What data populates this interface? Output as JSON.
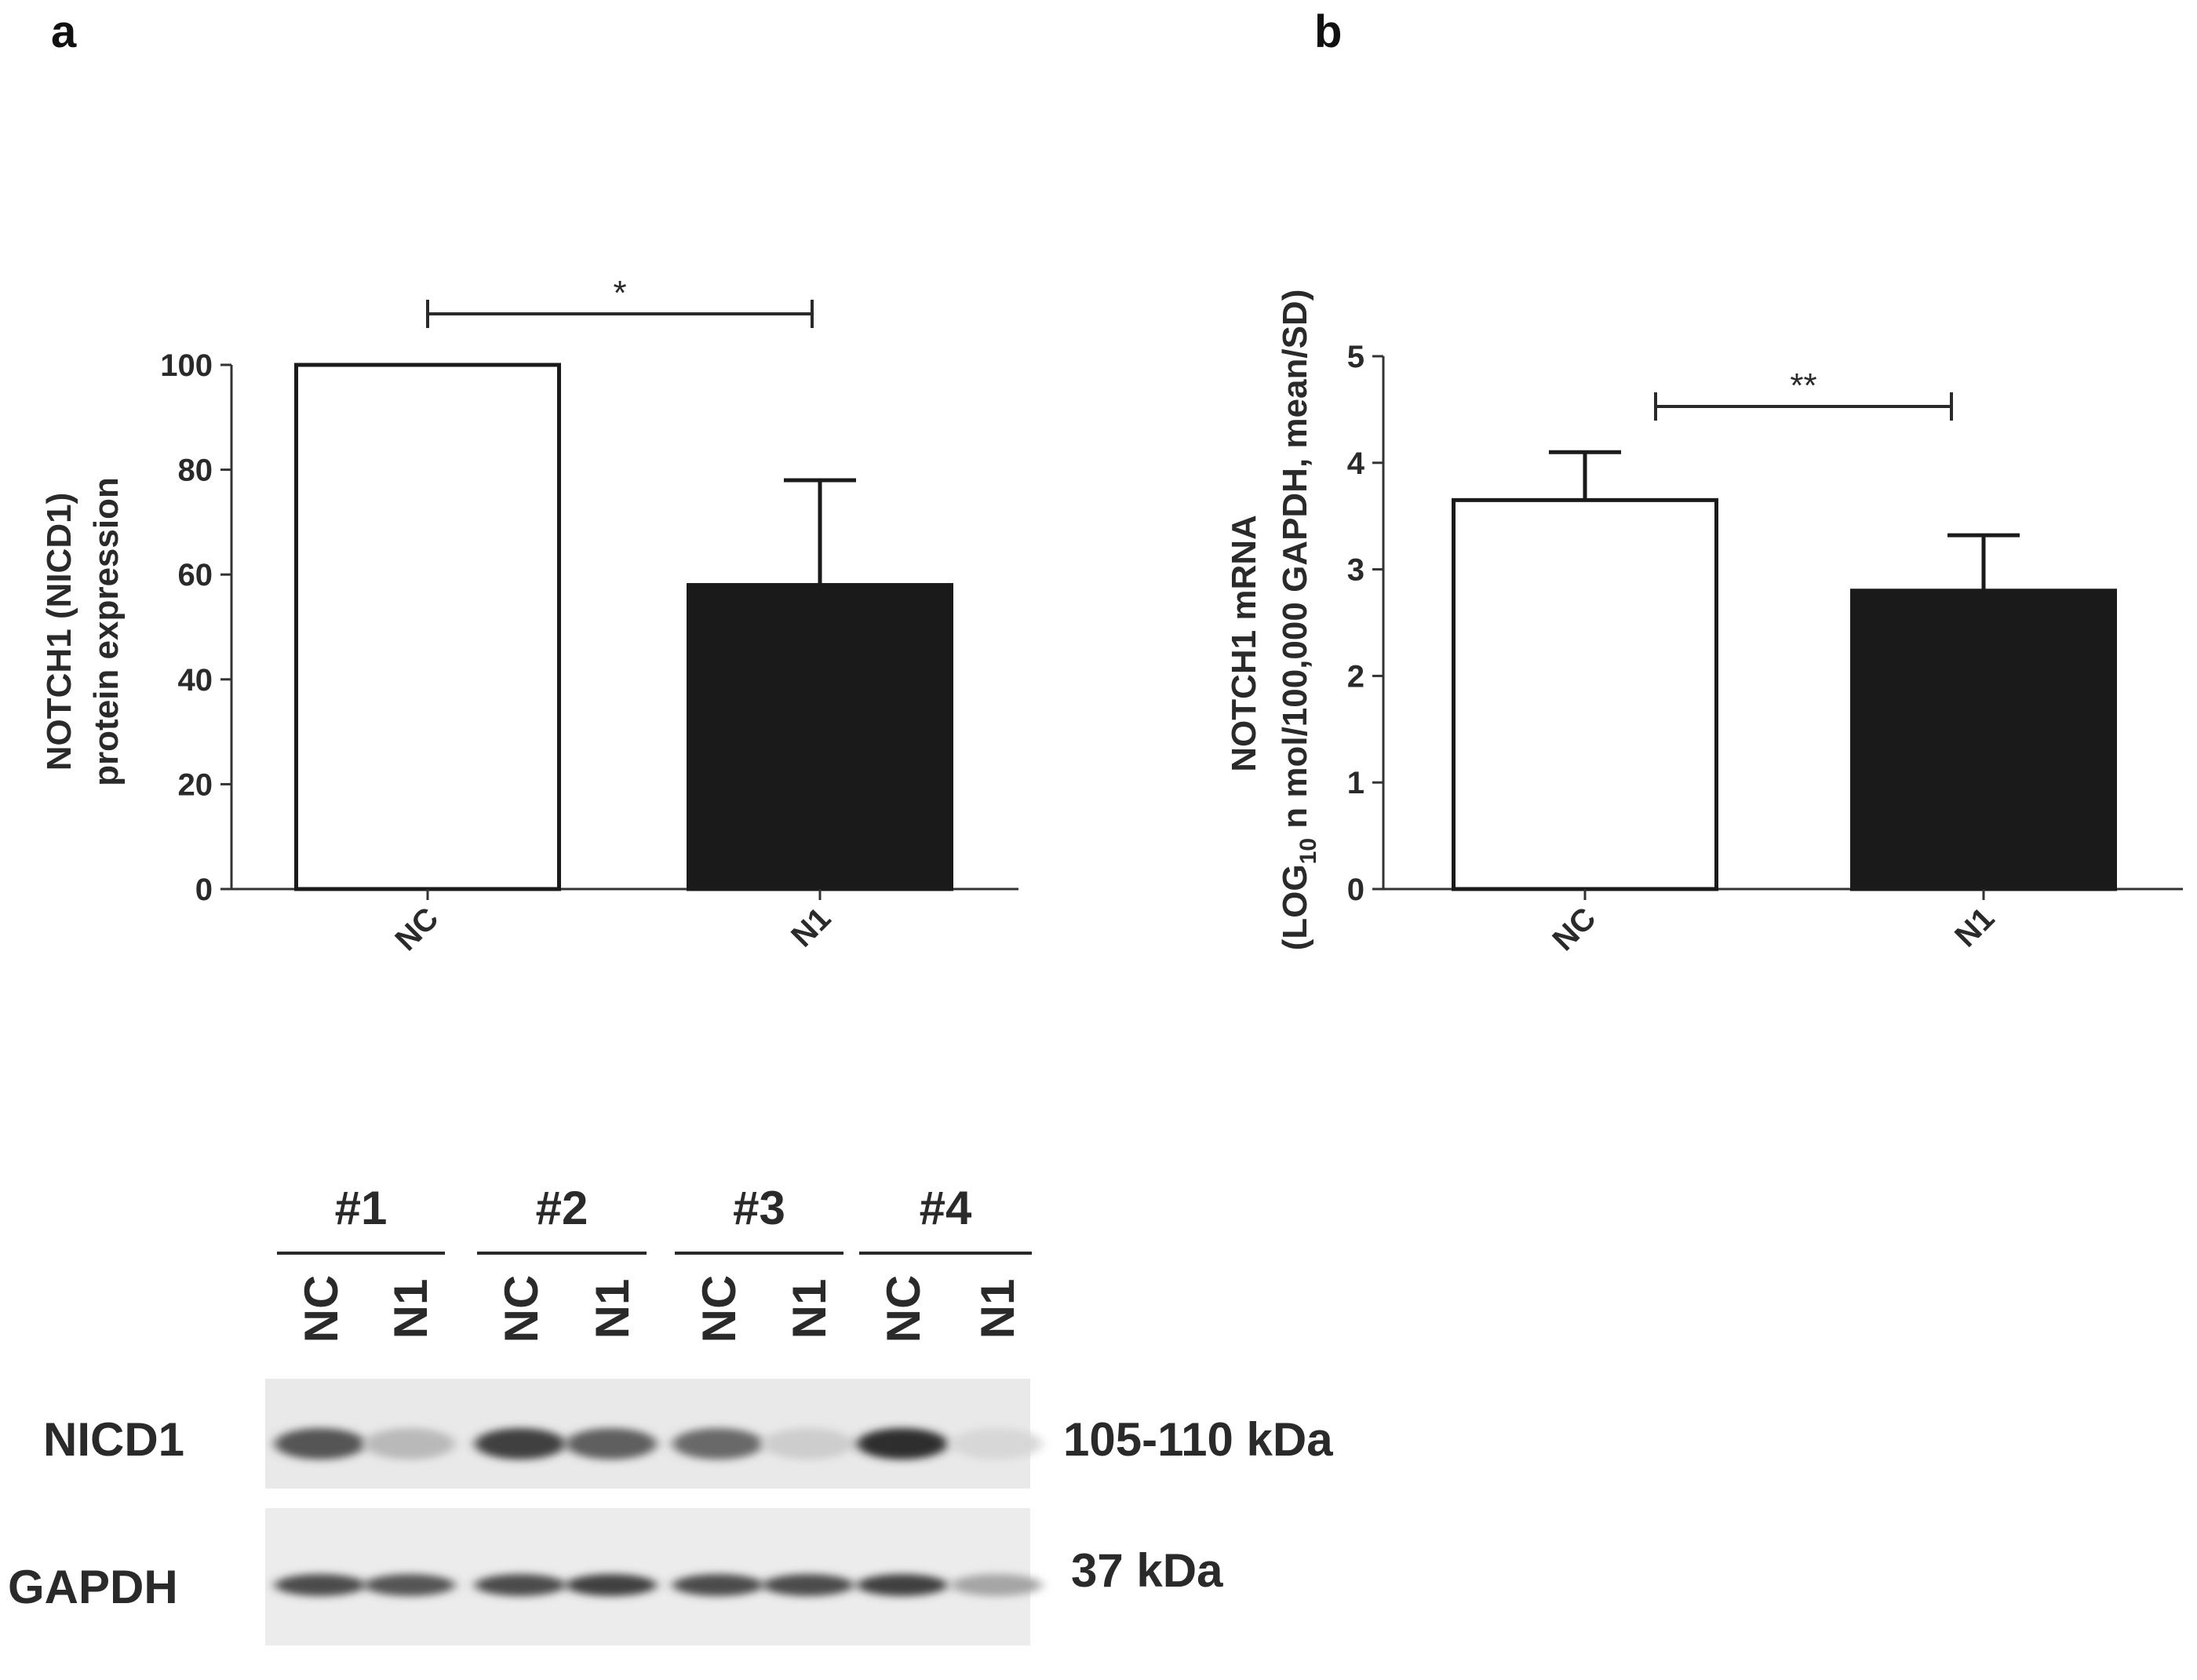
{
  "panels": {
    "a": {
      "letter": "a"
    },
    "b": {
      "letter": "b"
    }
  },
  "chart_data": [
    {
      "panel": "a",
      "type": "bar",
      "ylabel_lines": [
        "NOTCH1 (NICD1)",
        "protein expression"
      ],
      "ylim": [
        0,
        100
      ],
      "yticks": [
        "0",
        "20",
        "40",
        "60",
        "80",
        "100"
      ],
      "categories": [
        "NC",
        "N1"
      ],
      "values": [
        100,
        58
      ],
      "errors": [
        0,
        20
      ],
      "bar_colors": [
        "#ffffff",
        "#1a1a1a"
      ],
      "significance": "*"
    },
    {
      "panel": "b",
      "type": "bar",
      "ylabel_line1": "NOTCH1 mRNA",
      "ylabel_line2_prefix": "(LOG",
      "ylabel_line2_sub": "10",
      "ylabel_line2_suffix": " n mol/100,000 GAPDH, mean/SD)",
      "ylim": [
        0,
        5
      ],
      "yticks": [
        "0",
        "1",
        "2",
        "3",
        "4",
        "5"
      ],
      "categories": [
        "NC",
        "N1"
      ],
      "values": [
        3.65,
        2.8
      ],
      "errors": [
        0.45,
        0.52
      ],
      "bar_colors": [
        "#ffffff",
        "#1a1a1a"
      ],
      "significance": "**"
    }
  ],
  "blot": {
    "groups": [
      "#1",
      "#2",
      "#3",
      "#4"
    ],
    "lanes": [
      "NC",
      "N1",
      "NC",
      "N1",
      "NC",
      "N1",
      "NC",
      "N1"
    ],
    "rows": [
      {
        "label": "NICD1",
        "size": "105-110 kDa",
        "intensities": [
          0.75,
          0.25,
          0.85,
          0.7,
          0.65,
          0.15,
          0.95,
          0.1
        ]
      },
      {
        "label": "GAPDH",
        "size": "37 kDa",
        "intensities": [
          0.8,
          0.75,
          0.8,
          0.85,
          0.8,
          0.8,
          0.85,
          0.35
        ]
      }
    ]
  }
}
